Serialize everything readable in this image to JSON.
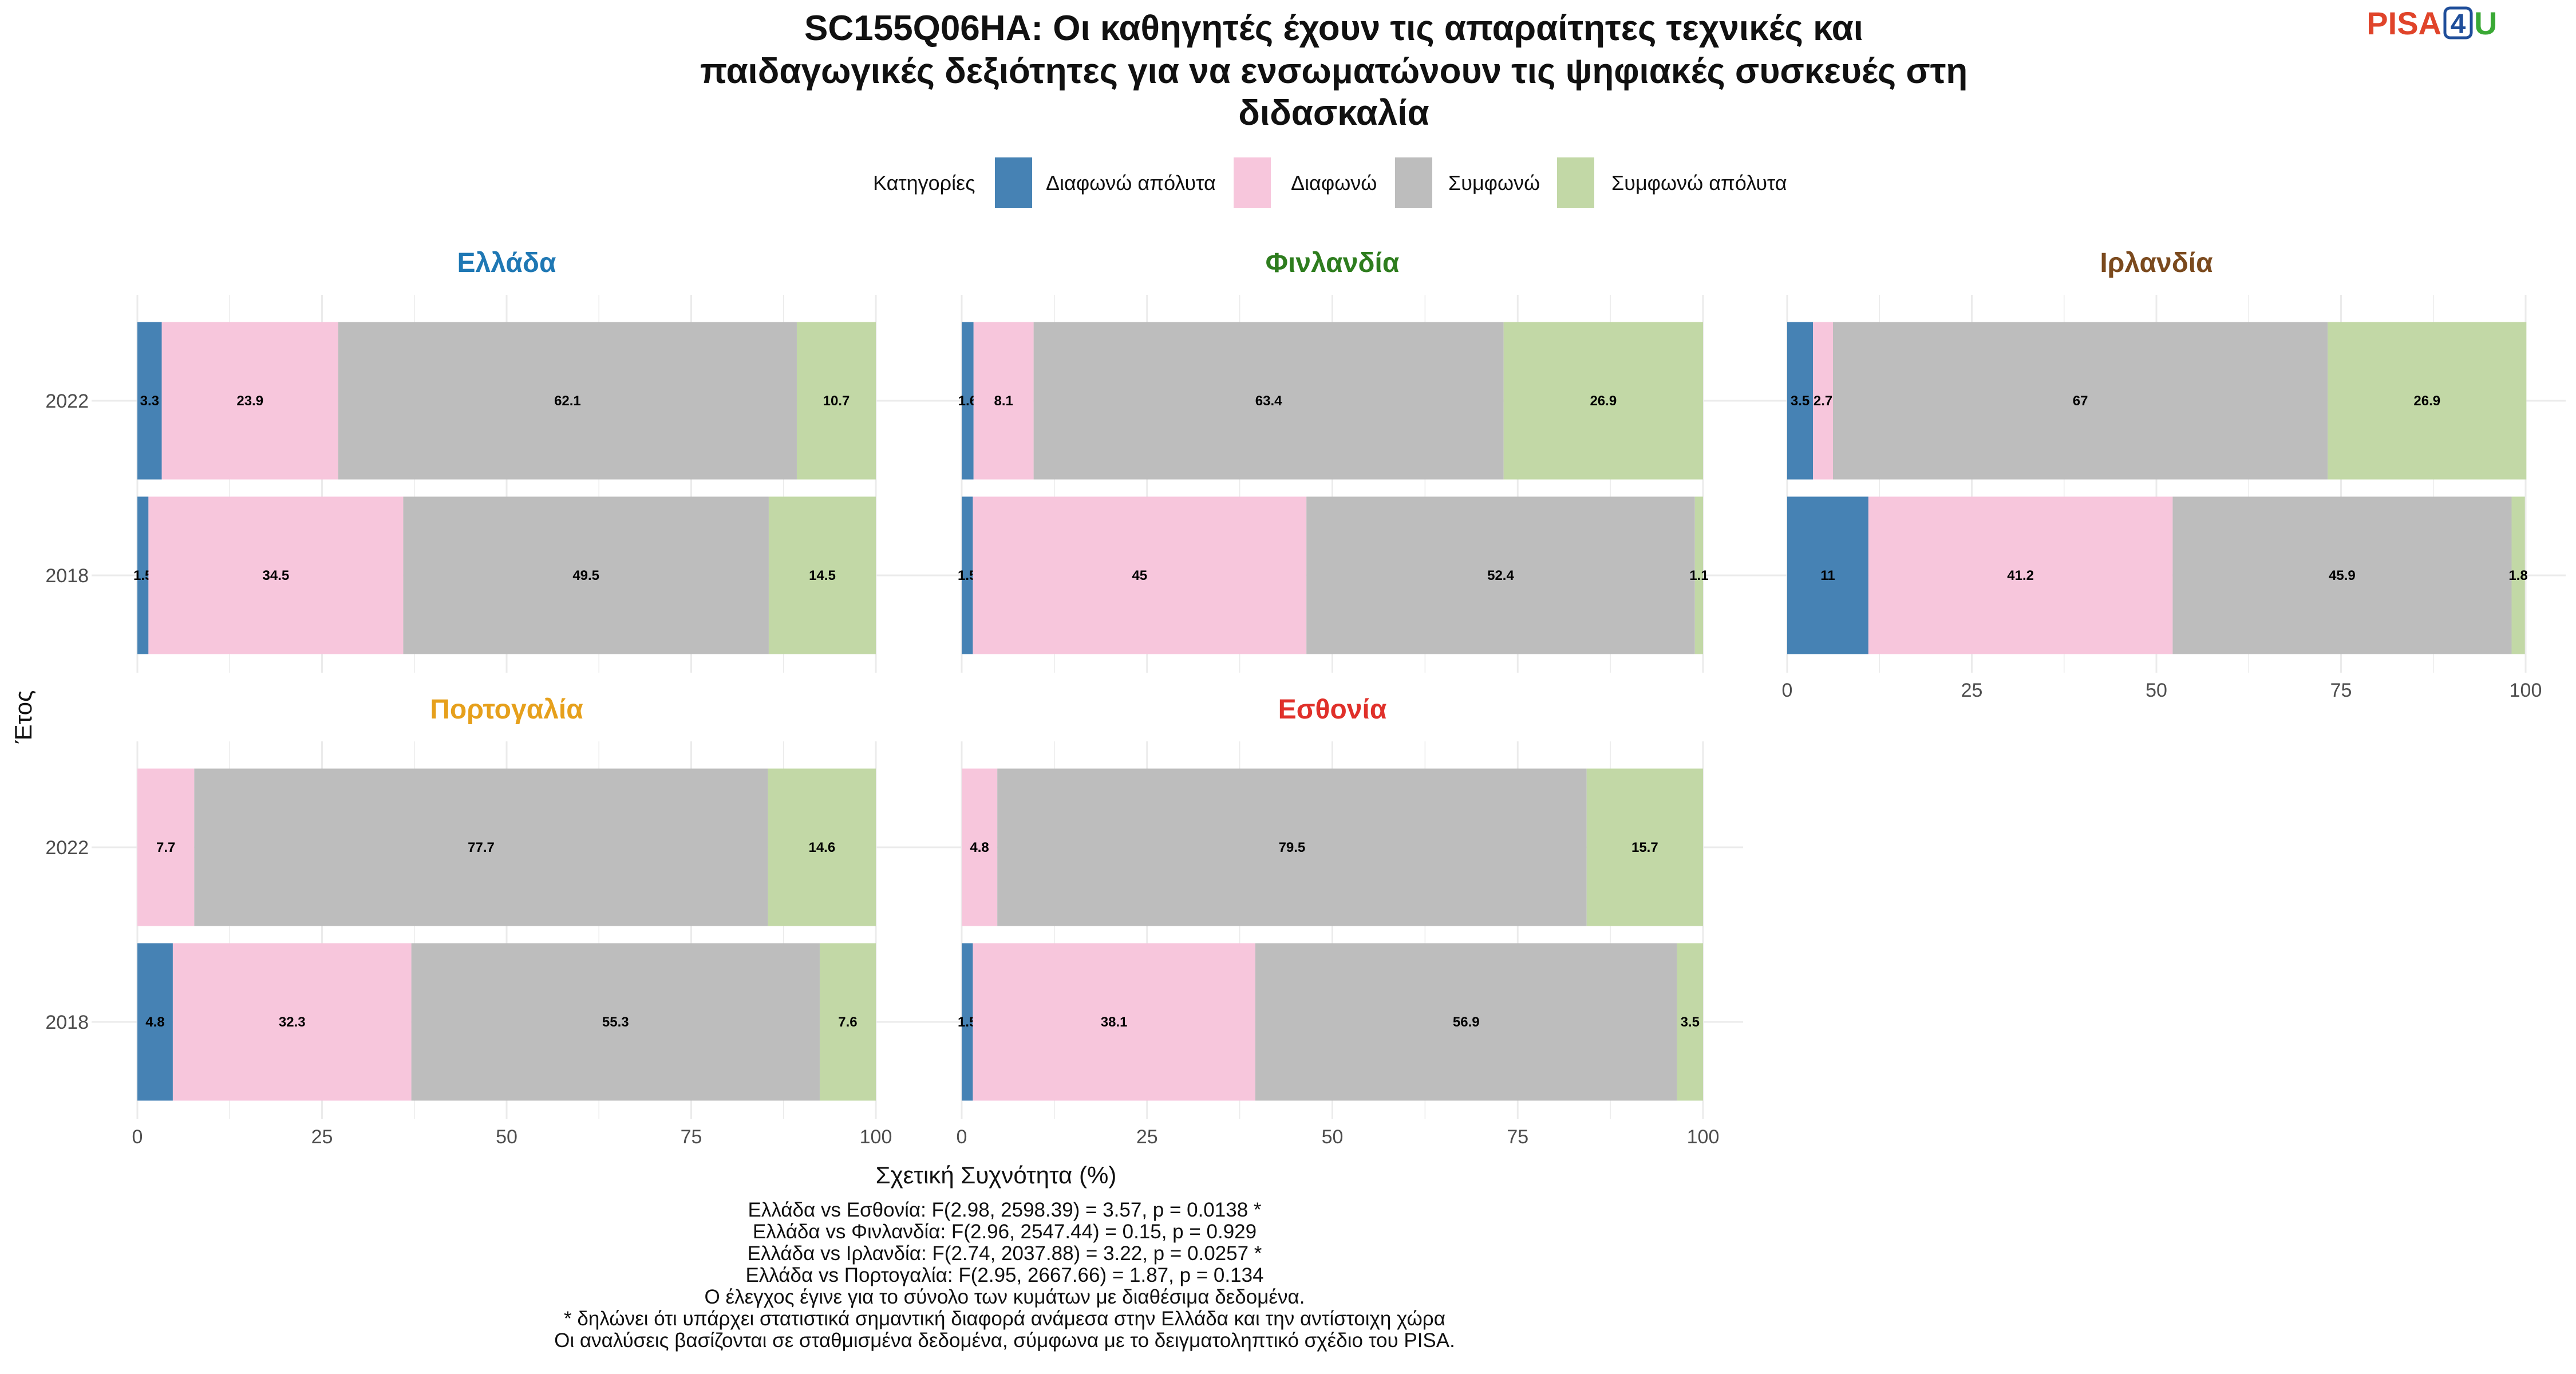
{
  "title_lines": [
    "SC155Q06HA: Οι καθηγητές έχουν τις απαραίτητες τεχνικές και",
    "παιδαγωγικές δεξιότητες για να ενσωματώνουν τις ψηφιακές συσκευές στη",
    "διδασκαλία"
  ],
  "logo": {
    "left": "PISA",
    "middle": "4",
    "right": "U"
  },
  "legend": {
    "title": "Κατηγορίες",
    "items": [
      {
        "label": "Διαφωνώ απόλυτα",
        "color": "#4682b4"
      },
      {
        "label": "Διαφωνώ",
        "color": "#f7c6dc"
      },
      {
        "label": "Συμφωνώ",
        "color": "#bdbdbd"
      },
      {
        "label": "Συμφωνώ απόλυτα",
        "color": "#c2d8a6"
      }
    ]
  },
  "chart_data": {
    "type": "bar",
    "orientation": "horizontal-stacked",
    "xlabel": "Σχετική Συχνότητα (%)",
    "ylabel": "Έτος",
    "xlim": [
      0,
      100
    ],
    "xticks": [
      0,
      25,
      50,
      75,
      100
    ],
    "categories": [
      "2022",
      "2018"
    ],
    "series_names": [
      "Διαφωνώ απόλυτα",
      "Διαφωνώ",
      "Συμφωνώ",
      "Συμφωνώ απόλυτα"
    ],
    "facets": [
      {
        "name": "Ελλάδα",
        "title_color": "#1f78b4",
        "bars": [
          {
            "year": "2022",
            "values": [
              3.3,
              23.9,
              62.1,
              10.7
            ]
          },
          {
            "year": "2018",
            "values": [
              1.5,
              34.5,
              49.5,
              14.5
            ]
          }
        ]
      },
      {
        "name": "Φινλανδία",
        "title_color": "#2e7d1e",
        "bars": [
          {
            "year": "2022",
            "values": [
              1.6,
              8.1,
              63.4,
              26.9
            ]
          },
          {
            "year": "2018",
            "values": [
              1.5,
              45,
              52.4,
              1.1
            ]
          }
        ]
      },
      {
        "name": "Ιρλανδία",
        "title_color": "#7b4a1e",
        "bars": [
          {
            "year": "2022",
            "values": [
              3.5,
              2.7,
              67,
              26.9
            ]
          },
          {
            "year": "2018",
            "values": [
              11,
              41.2,
              45.9,
              1.8
            ]
          }
        ]
      },
      {
        "name": "Πορτογαλία",
        "title_color": "#e6a01c",
        "bars": [
          {
            "year": "2022",
            "values": [
              null,
              7.7,
              77.7,
              14.6
            ]
          },
          {
            "year": "2018",
            "values": [
              4.8,
              32.3,
              55.3,
              7.6
            ]
          }
        ]
      },
      {
        "name": "Εσθονία",
        "title_color": "#e0302a",
        "bars": [
          {
            "year": "2022",
            "values": [
              null,
              4.8,
              79.5,
              15.7
            ]
          },
          {
            "year": "2018",
            "values": [
              1.5,
              38.1,
              56.9,
              3.5
            ]
          }
        ]
      }
    ]
  },
  "caption_lines": [
    "Ελλάδα vs Εσθονία: F(2.98, 2598.39) = 3.57, p = 0.0138 *",
    "Ελλάδα vs Φινλανδία: F(2.96, 2547.44) = 0.15, p = 0.929",
    "Ελλάδα vs Ιρλανδία: F(2.74, 2037.88) = 3.22, p = 0.0257 *",
    "Ελλάδα vs Πορτογαλία: F(2.95, 2667.66) = 1.87, p = 0.134",
    "Ο έλεγχος έγινε για το σύνολο των κυμάτων με διαθέσιμα δεδομένα.",
    "* δηλώνει ότι υπάρχει στατιστικά σημαντική διαφορά ανάμεσα στην Ελλάδα και την αντίστοιχη χώρα",
    "Οι αναλύσεις βασίζονται σε σταθμισμένα δεδομένα, σύμφωνα με το δειγματοληπτικό σχέδιο του PISA."
  ]
}
